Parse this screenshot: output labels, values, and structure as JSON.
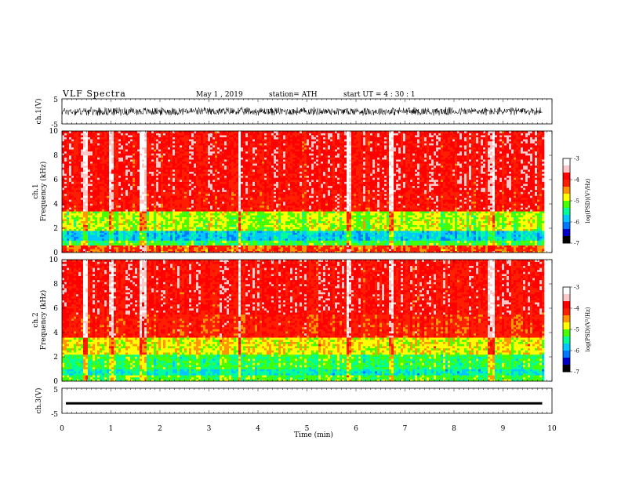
{
  "header": {
    "title": "VLF  Spectra",
    "date": "May 1  , 2019",
    "station": "station= ATH",
    "start": "start  UT  =   4  : 30 : 1"
  },
  "colors": {
    "cmap": [
      "#000000",
      "#0000c8",
      "#0078ff",
      "#00c8ff",
      "#00ff96",
      "#46ff00",
      "#ffff00",
      "#ff9600",
      "#ff1e00",
      "#ff0000",
      "#ffc8c8",
      "#ffffff"
    ]
  },
  "chart_data": [
    {
      "type": "line",
      "id": "ch1-waveform",
      "ylabel": "ch.1(V)",
      "ylim": [
        -5,
        5
      ],
      "yticks": [
        "5",
        "-5"
      ],
      "xlim": [
        0,
        10
      ],
      "x_extent": 9.8,
      "mean": 0,
      "amplitude_range": [
        -2,
        2
      ]
    },
    {
      "type": "heatmap",
      "id": "ch1-spectrogram",
      "ylabel": "ch.1\nFrequency  (kHz)",
      "ylabel_lines": [
        "ch.1",
        "Frequency  (kHz)"
      ],
      "ylim": [
        0,
        10
      ],
      "yticks": [
        0,
        2,
        4,
        6,
        8,
        10
      ],
      "xlim": [
        0,
        10
      ],
      "x_extent": 9.8,
      "colorbar": {
        "label": "log(PSD)(V²/Hz)",
        "range": [
          -7,
          -3
        ],
        "ticks": [
          "-3",
          "-4",
          "-5",
          "-6",
          "-7"
        ]
      },
      "bands": [
        {
          "f": [
            0,
            0.6
          ],
          "level": -4.3
        },
        {
          "f": [
            0.6,
            1.0
          ],
          "level": -5.3
        },
        {
          "f": [
            1.0,
            1.8
          ],
          "level": -5.8
        },
        {
          "f": [
            1.8,
            3.4
          ],
          "level": -5.0
        },
        {
          "f": [
            3.4,
            5.0
          ],
          "level": -4.0
        },
        {
          "f": [
            5.0,
            10
          ],
          "level": -3.9
        }
      ],
      "spikes": [
        0.45,
        1.0,
        1.6,
        1.65,
        3.6,
        5.85,
        6.7,
        8.7,
        8.75
      ]
    },
    {
      "type": "heatmap",
      "id": "ch2-spectrogram",
      "ylabel": "ch.2\nFrequency  (kHz)",
      "ylabel_lines": [
        "ch.2",
        "Frequency  (kHz)"
      ],
      "ylim": [
        0,
        10
      ],
      "yticks": [
        0,
        2,
        4,
        6,
        8,
        10
      ],
      "xlim": [
        0,
        10
      ],
      "x_extent": 9.8,
      "colorbar": {
        "label": "log(PSD)(V²/Hz)",
        "range": [
          -7,
          -3
        ],
        "ticks": [
          "-3",
          "-4",
          "-5",
          "-6",
          "-7"
        ]
      },
      "bands": [
        {
          "f": [
            0,
            0.5
          ],
          "level": -5.2
        },
        {
          "f": [
            0.5,
            1.0
          ],
          "level": -5.6
        },
        {
          "f": [
            1.0,
            2.2
          ],
          "level": -5.3
        },
        {
          "f": [
            2.2,
            3.6
          ],
          "level": -4.8
        },
        {
          "f": [
            3.6,
            5.5
          ],
          "level": -4.1
        },
        {
          "f": [
            5.5,
            10
          ],
          "level": -3.9
        }
      ],
      "spikes": [
        0.45,
        1.0,
        1.6,
        1.65,
        3.6,
        5.85,
        6.7,
        8.7,
        8.75
      ]
    },
    {
      "type": "line",
      "id": "ch3-waveform",
      "ylabel": "ch.3(V)",
      "ylim": [
        -5,
        5
      ],
      "yticks": [
        "5",
        "-5"
      ],
      "xlim": [
        0,
        10
      ],
      "x_extent": 9.8,
      "mean": -1,
      "xlabel": "Time  (min)",
      "xticks": [
        "0",
        "1",
        "2",
        "3",
        "4",
        "5",
        "6",
        "7",
        "8",
        "9",
        "10"
      ]
    }
  ]
}
